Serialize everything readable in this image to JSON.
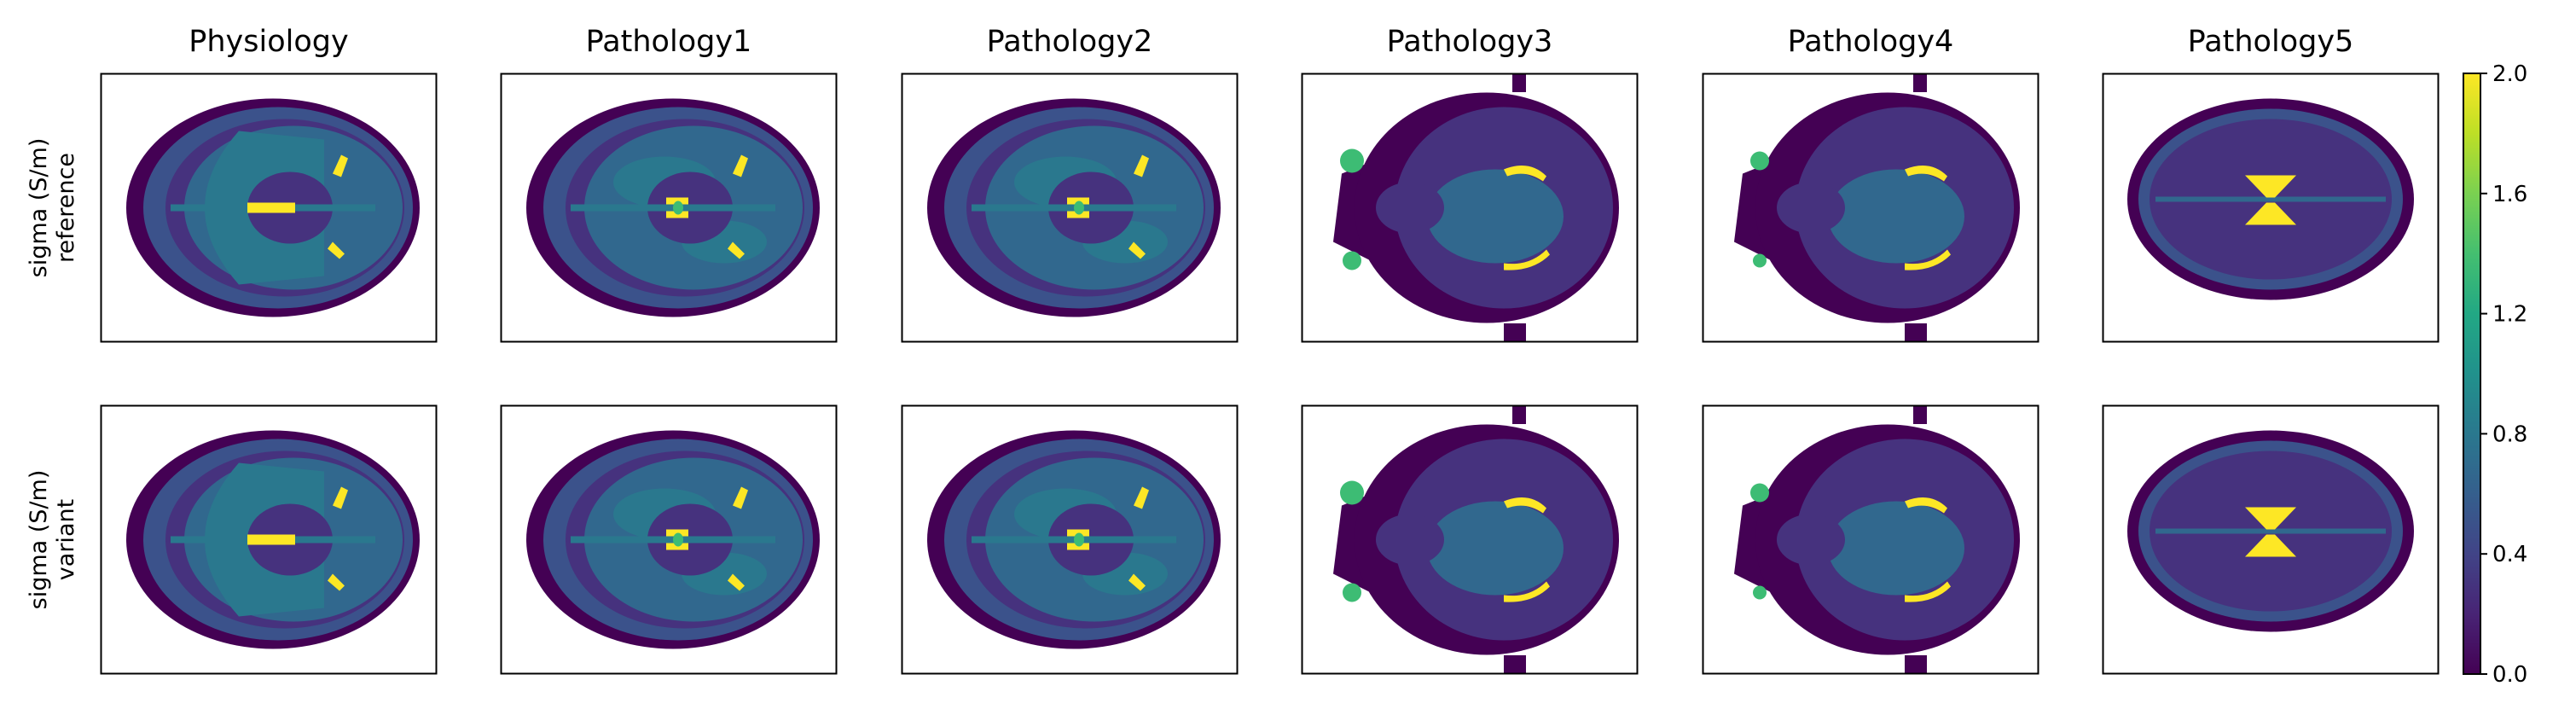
{
  "chart_data": {
    "type": "heatmap",
    "columns": [
      "Physiology",
      "Pathology1",
      "Pathology2",
      "Pathology3",
      "Pathology4",
      "Pathology5"
    ],
    "rows": [
      {
        "label_line1": "sigma (S/m)",
        "label_line2": "reference"
      },
      {
        "label_line1": "sigma (S/m)",
        "label_line2": "variant"
      }
    ],
    "colorbar": {
      "min": 0.0,
      "max": 2.0,
      "ticks": [
        "0.0",
        "0.4",
        "0.8",
        "1.2",
        "1.6",
        "2.0"
      ],
      "colormap": "viridis"
    },
    "grid": false,
    "colors": {
      "background": "#440154",
      "skull": "#3b528b",
      "brain": "#31688e",
      "white_matter": "#2a788e",
      "csf": "#fde725",
      "lesion": "#3dbc74",
      "dark_tissue": "#46327e"
    }
  }
}
